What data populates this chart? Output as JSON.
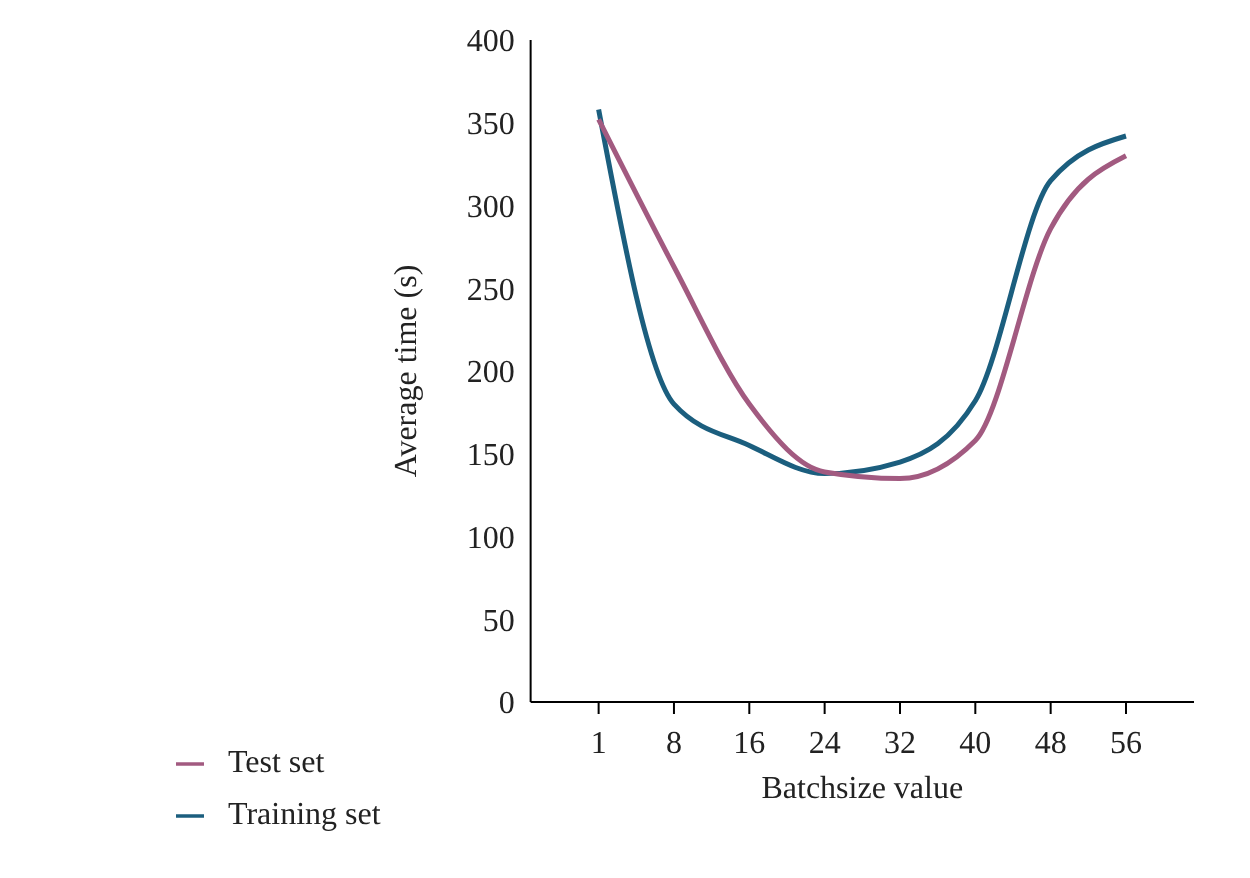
{
  "chart_data": {
    "type": "line",
    "xlabel": "Batchsize value",
    "ylabel": "Average time (s)",
    "categories": [
      "1",
      "8",
      "16",
      "24",
      "32",
      "40",
      "48",
      "56"
    ],
    "series": [
      {
        "name": "Training set",
        "color": "#1b5e7e",
        "values": [
          358,
          180,
          155,
          138,
          145,
          182,
          315,
          342
        ]
      },
      {
        "name": "Test set",
        "color": "#a25a80",
        "values": [
          352,
          263,
          180,
          139,
          135,
          158,
          286,
          330
        ]
      }
    ],
    "ylim": [
      0,
      400
    ],
    "yticks": [
      0,
      50,
      100,
      150,
      200,
      250,
      300,
      350,
      400
    ],
    "grid": false,
    "legend": "bottom left",
    "marker": "none",
    "line_style": "solid"
  }
}
